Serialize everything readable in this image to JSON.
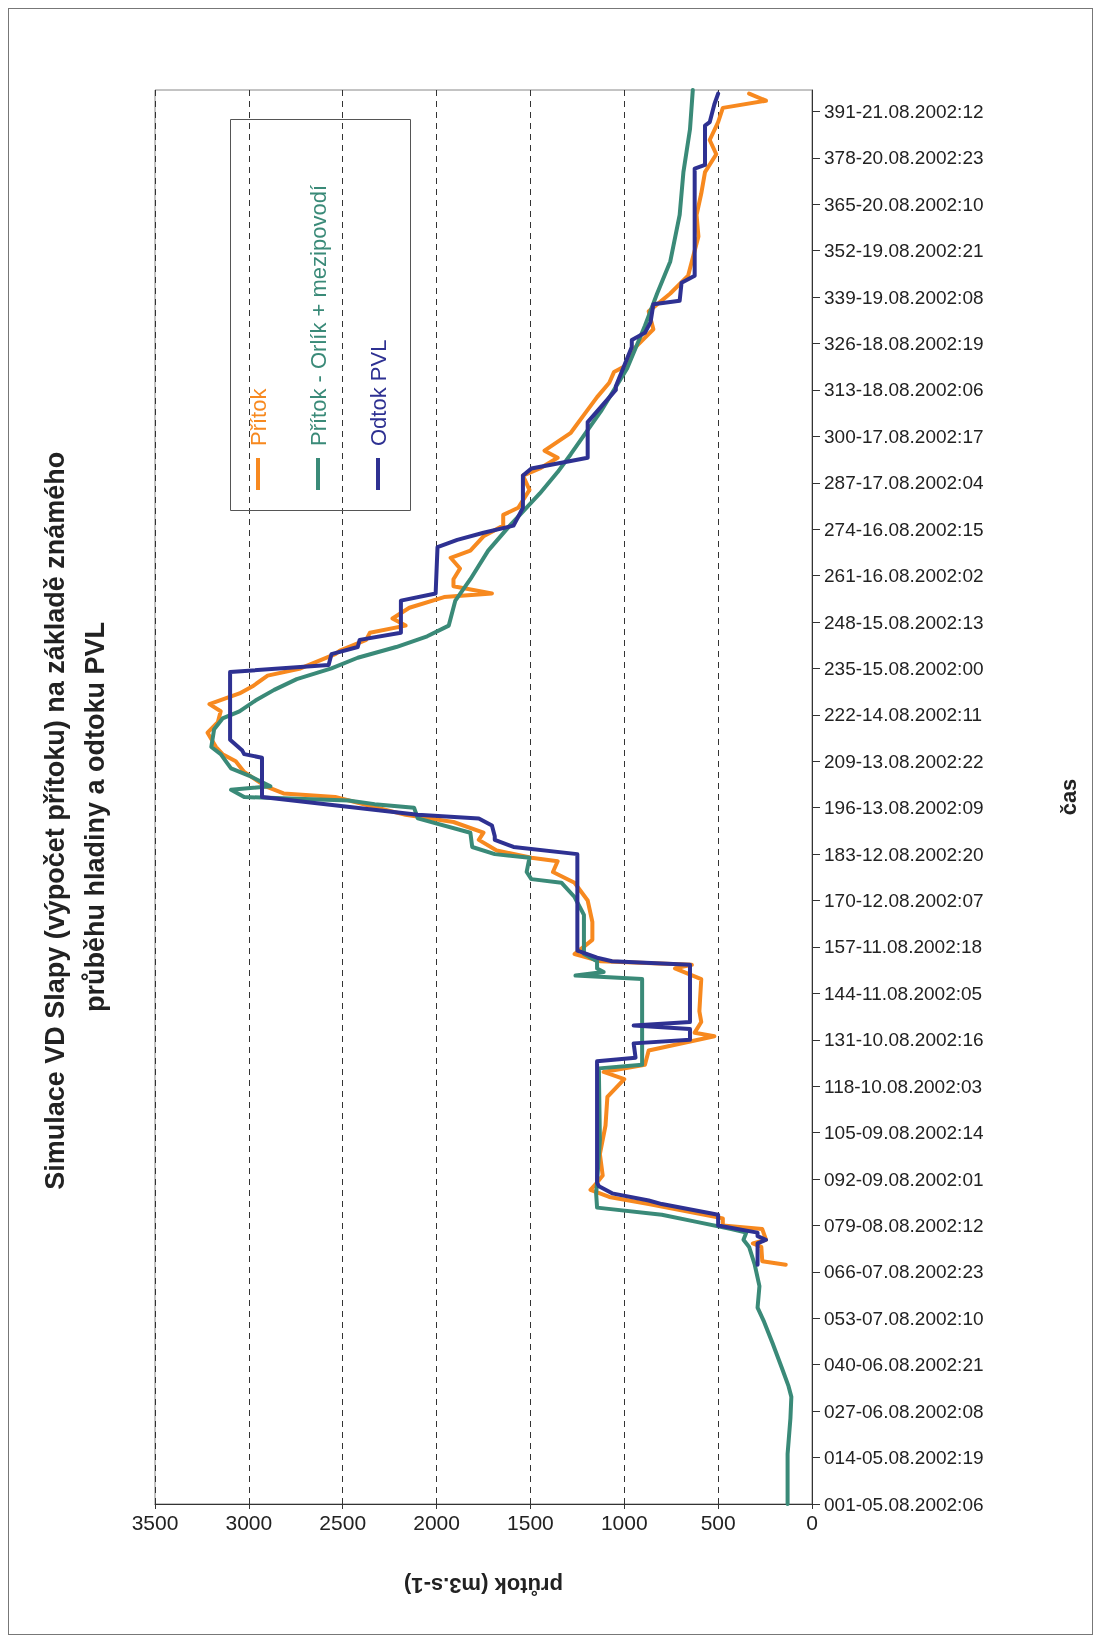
{
  "chart_data": {
    "type": "line",
    "title": "Simulace VD Slapy (výpočet přítoku) na základě známého průběhu hladiny a odtoku PVL",
    "xlabel": "průtok (m3.s-1)",
    "ylabel": "čas",
    "orientation": "horizontal",
    "ylim": [
      "2002-08-05T06:00",
      "2002-08-21T18:00"
    ],
    "yticks": [
      {
        "value": "2002-08-05T06:00",
        "label": "001-05.08.2002:06"
      },
      {
        "value": "2002-08-05T19:00",
        "label": "014-05.08.2002:19"
      },
      {
        "value": "2002-08-06T08:00",
        "label": "027-06.08.2002:08"
      },
      {
        "value": "2002-08-06T21:00",
        "label": "040-06.08.2002:21"
      },
      {
        "value": "2002-08-07T10:00",
        "label": "053-07.08.2002:10"
      },
      {
        "value": "2002-08-07T23:00",
        "label": "066-07.08.2002:23"
      },
      {
        "value": "2002-08-08T12:00",
        "label": "079-08.08.2002:12"
      },
      {
        "value": "2002-08-09T01:00",
        "label": "092-09.08.2002:01"
      },
      {
        "value": "2002-08-09T14:00",
        "label": "105-09.08.2002:14"
      },
      {
        "value": "2002-08-10T03:00",
        "label": "118-10.08.2002:03"
      },
      {
        "value": "2002-08-10T16:00",
        "label": "131-10.08.2002:16"
      },
      {
        "value": "2002-08-11T05:00",
        "label": "144-11.08.2002:05"
      },
      {
        "value": "2002-08-11T18:00",
        "label": "157-11.08.2002:18"
      },
      {
        "value": "2002-08-12T07:00",
        "label": "170-12.08.2002:07"
      },
      {
        "value": "2002-08-12T20:00",
        "label": "183-12.08.2002:20"
      },
      {
        "value": "2002-08-13T09:00",
        "label": "196-13.08.2002:09"
      },
      {
        "value": "2002-08-13T22:00",
        "label": "209-13.08.2002:22"
      },
      {
        "value": "2002-08-14T11:00",
        "label": "222-14.08.2002:11"
      },
      {
        "value": "2002-08-15T00:00",
        "label": "235-15.08.2002:00"
      },
      {
        "value": "2002-08-15T13:00",
        "label": "248-15.08.2002:13"
      },
      {
        "value": "2002-08-16T02:00",
        "label": "261-16.08.2002:02"
      },
      {
        "value": "2002-08-16T15:00",
        "label": "274-16.08.2002:15"
      },
      {
        "value": "2002-08-17T04:00",
        "label": "287-17.08.2002:04"
      },
      {
        "value": "2002-08-17T17:00",
        "label": "300-17.08.2002:17"
      },
      {
        "value": "2002-08-18T06:00",
        "label": "313-18.08.2002:06"
      },
      {
        "value": "2002-08-18T19:00",
        "label": "326-18.08.2002:19"
      },
      {
        "value": "2002-08-19T08:00",
        "label": "339-19.08.2002:08"
      },
      {
        "value": "2002-08-19T21:00",
        "label": "352-19.08.2002:21"
      },
      {
        "value": "2002-08-20T10:00",
        "label": "365-20.08.2002:10"
      },
      {
        "value": "2002-08-20T23:00",
        "label": "378-20.08.2002:23"
      },
      {
        "value": "2002-08-21T12:00",
        "label": "391-21.08.2002:12"
      }
    ],
    "xlim": [
      3500,
      0
    ],
    "xticks": [
      0,
      500,
      1000,
      1500,
      2000,
      2500,
      3000,
      3500
    ],
    "grid": "x",
    "legend": "top left",
    "marker": "none",
    "line_style": "solid",
    "series": [
      {
        "name": "Přítok",
        "color": "#f7891f",
        "x": [
          "2002-08-08T01:00",
          "2002-08-08T02:00",
          "2002-08-08T06:00",
          "2002-08-08T07:00",
          "2002-08-08T08:00",
          "2002-08-08T11:00",
          "2002-08-08T12:00",
          "2002-08-08T14:00",
          "2002-08-08T18:00",
          "2002-08-08T20:00",
          "2002-08-08T22:00",
          "2002-08-09T00:00",
          "2002-08-09T02:00",
          "2002-08-09T08:00",
          "2002-08-09T16:00",
          "2002-08-10T00:00",
          "2002-08-10T05:00",
          "2002-08-10T07:00",
          "2002-08-10T09:00",
          "2002-08-10T13:00",
          "2002-08-10T17:00",
          "2002-08-10T18:00",
          "2002-08-10T21:00",
          "2002-08-11T00:00",
          "2002-08-11T09:00",
          "2002-08-11T12:00",
          "2002-08-11T13:00",
          "2002-08-11T14:00",
          "2002-08-11T16:00",
          "2002-08-11T20:00",
          "2002-08-12T01:00",
          "2002-08-12T07:00",
          "2002-08-12T12:00",
          "2002-08-12T15:00",
          "2002-08-12T18:00",
          "2002-08-12T19:00",
          "2002-08-12T21:00",
          "2002-08-13T00:00",
          "2002-08-13T02:00",
          "2002-08-13T05:00",
          "2002-08-13T07:00",
          "2002-08-13T12:00",
          "2002-08-13T13:00",
          "2002-08-13T15:00",
          "2002-08-13T19:00",
          "2002-08-13T22:00",
          "2002-08-14T00:00",
          "2002-08-14T02:00",
          "2002-08-14T06:00",
          "2002-08-14T09:00",
          "2002-08-14T12:00",
          "2002-08-14T14:00",
          "2002-08-14T17:00",
          "2002-08-14T19:00",
          "2002-08-14T22:00",
          "2002-08-15T00:00",
          "2002-08-15T04:00",
          "2002-08-15T05:00",
          "2002-08-15T08:00",
          "2002-08-15T10:00",
          "2002-08-15T12:00",
          "2002-08-15T14:00",
          "2002-08-15T17:00",
          "2002-08-15T20:00",
          "2002-08-15T21:00",
          "2002-08-15T23:00",
          "2002-08-16T01:00",
          "2002-08-16T04:00",
          "2002-08-16T07:00",
          "2002-08-16T09:00",
          "2002-08-16T13:00",
          "2002-08-16T16:00",
          "2002-08-16T19:00",
          "2002-08-16T21:00",
          "2002-08-17T02:00",
          "2002-08-17T06:00",
          "2002-08-17T08:00",
          "2002-08-17T11:00",
          "2002-08-17T13:00",
          "2002-08-17T18:00",
          "2002-08-17T23:00",
          "2002-08-18T04:00",
          "2002-08-18T08:00",
          "2002-08-18T11:00",
          "2002-08-18T13:00",
          "2002-08-18T18:00",
          "2002-08-18T23:00",
          "2002-08-19T04:00",
          "2002-08-19T09:00",
          "2002-08-19T14:00",
          "2002-08-19T16:00",
          "2002-08-20T01:00",
          "2002-08-20T07:00",
          "2002-08-20T13:00",
          "2002-08-20T19:00",
          "2002-08-21T00:00",
          "2002-08-21T04:00",
          "2002-08-21T09:00",
          "2002-08-21T13:00",
          "2002-08-21T15:00",
          "2002-08-21T17:00"
        ],
        "values": [
          140,
          265,
          270,
          315,
          245,
          265,
          475,
          475,
          870,
          1080,
          1180,
          1145,
          1115,
          1130,
          1100,
          1090,
          1000,
          1110,
          890,
          870,
          520,
          625,
          590,
          600,
          590,
          730,
          640,
          1125,
          1265,
          1170,
          1170,
          1195,
          1265,
          1380,
          1355,
          1495,
          1680,
          1775,
          1750,
          1910,
          2165,
          2540,
          2815,
          2910,
          3025,
          3070,
          3140,
          3175,
          3220,
          3165,
          3150,
          3210,
          3050,
          2980,
          2900,
          2725,
          2540,
          2515,
          2375,
          2355,
          2165,
          2235,
          2145,
          1960,
          1705,
          1910,
          1910,
          1875,
          1925,
          1820,
          1750,
          1645,
          1645,
          1565,
          1505,
          1540,
          1450,
          1355,
          1425,
          1285,
          1215,
          1145,
          1080,
          1055,
          985,
          940,
          845,
          870,
          755,
          660,
          650,
          605,
          615,
          590,
          570,
          510,
          545,
          500,
          475,
          245,
          335
        ]
      },
      {
        "name": "Přítok - Orlík + mezipovodí",
        "color": "#3a8a78",
        "x": [
          "2002-08-05T06:00",
          "2002-08-05T20:00",
          "2002-08-06T06:00",
          "2002-08-06T12:00",
          "2002-08-06T15:00",
          "2002-08-06T20:00",
          "2002-08-07T03:00",
          "2002-08-07T09:00",
          "2002-08-07T13:00",
          "2002-08-07T19:00",
          "2002-08-08T01:00",
          "2002-08-08T06:00",
          "2002-08-08T08:00",
          "2002-08-08T10:00",
          "2002-08-08T11:00",
          "2002-08-08T13:00",
          "2002-08-08T15:00",
          "2002-08-08T17:00",
          "2002-08-08T21:00",
          "2002-08-09T00:00",
          "2002-08-09T12:00",
          "2002-08-10T06:00",
          "2002-08-10T08:00",
          "2002-08-10T09:00",
          "2002-08-11T09:00",
          "2002-08-11T10:00",
          "2002-08-11T11:00",
          "2002-08-11T12:00",
          "2002-08-11T14:00",
          "2002-08-11T16:00",
          "2002-08-12T03:00",
          "2002-08-12T08:00",
          "2002-08-12T12:00",
          "2002-08-12T13:00",
          "2002-08-12T15:00",
          "2002-08-12T19:00",
          "2002-08-12T20:00",
          "2002-08-12T22:00",
          "2002-08-13T02:00",
          "2002-08-13T06:00",
          "2002-08-13T09:00",
          "2002-08-13T10:00",
          "2002-08-13T11:00",
          "2002-08-13T12:00",
          "2002-08-13T14:00",
          "2002-08-13T15:00",
          "2002-08-13T18:00",
          "2002-08-13T20:00",
          "2002-08-14T00:00",
          "2002-08-14T02:00",
          "2002-08-14T07:00",
          "2002-08-14T10:00",
          "2002-08-14T12:00",
          "2002-08-14T15:00",
          "2002-08-14T18:00",
          "2002-08-14T21:00",
          "2002-08-15T00:00",
          "2002-08-15T03:00",
          "2002-08-15T06:00",
          "2002-08-15T09:00",
          "2002-08-15T12:00",
          "2002-08-15T19:00",
          "2002-08-16T01:00",
          "2002-08-16T09:00",
          "2002-08-16T16:00",
          "2002-08-17T01:00",
          "2002-08-17T07:00",
          "2002-08-17T12:00",
          "2002-08-18T00:00",
          "2002-08-18T12:00",
          "2002-08-19T00:00",
          "2002-08-19T09:00",
          "2002-08-19T18:00",
          "2002-08-20T07:00",
          "2002-08-20T19:00",
          "2002-08-21T07:00",
          "2002-08-21T18:00"
        ],
        "values": [
          130,
          130,
          115,
          110,
          125,
          160,
          210,
          255,
          290,
          280,
          305,
          335,
          365,
          350,
          430,
          615,
          800,
          1145,
          1150,
          1145,
          1130,
          1135,
          1135,
          905,
          905,
          1260,
          1110,
          1145,
          1145,
          1215,
          1215,
          1265,
          1335,
          1495,
          1520,
          1505,
          1690,
          1810,
          1820,
          2100,
          2120,
          2330,
          2470,
          3025,
          3095,
          2885,
          3000,
          3095,
          3150,
          3200,
          3185,
          3140,
          3050,
          2965,
          2865,
          2745,
          2560,
          2420,
          2215,
          2050,
          1935,
          1900,
          1820,
          1725,
          1610,
          1450,
          1355,
          1285,
          1125,
          985,
          890,
          825,
          755,
          705,
          685,
          650,
          635
        ]
      },
      {
        "name": "Odtok PVL",
        "color": "#2e3192",
        "x": [
          "2002-08-08T01:00",
          "2002-08-08T07:00",
          "2002-08-08T08:00",
          "2002-08-08T09:00",
          "2002-08-08T10:00",
          "2002-08-08T12:00",
          "2002-08-08T15:00",
          "2002-08-08T18:00",
          "2002-08-08T19:00",
          "2002-08-08T21:00",
          "2002-08-08T23:00",
          "2002-08-09T00:00",
          "2002-08-10T10:00",
          "2002-08-10T11:00",
          "2002-08-10T15:00",
          "2002-08-10T16:00",
          "2002-08-10T19:00",
          "2002-08-10T20:00",
          "2002-08-10T21:00",
          "2002-08-11T13:00",
          "2002-08-11T14:00",
          "2002-08-11T15:00",
          "2002-08-11T17:00",
          "2002-08-12T20:00",
          "2002-08-12T22:00",
          "2002-08-13T00:00",
          "2002-08-13T01:00",
          "2002-08-13T04:00",
          "2002-08-13T06:00",
          "2002-08-13T07:00",
          "2002-08-13T12:00",
          "2002-08-13T23:00",
          "2002-08-14T00:00",
          "2002-08-14T01:00",
          "2002-08-14T04:00",
          "2002-08-14T23:00",
          "2002-08-15T01:00",
          "2002-08-15T04:00",
          "2002-08-15T06:00",
          "2002-08-15T08:00",
          "2002-08-15T10:00",
          "2002-08-15T19:00",
          "2002-08-15T21:00",
          "2002-08-16T10:00",
          "2002-08-16T12:00",
          "2002-08-16T14:00",
          "2002-08-16T16:00",
          "2002-08-16T21:00",
          "2002-08-17T06:00",
          "2002-08-17T08:00",
          "2002-08-17T11:00",
          "2002-08-17T21:00",
          "2002-08-18T06:00",
          "2002-08-18T07:00",
          "2002-08-18T18:00",
          "2002-08-18T20:00",
          "2002-08-18T22:00",
          "2002-08-19T01:00",
          "2002-08-19T06:00",
          "2002-08-19T07:00",
          "2002-08-19T12:00",
          "2002-08-19T14:00",
          "2002-08-20T20:00",
          "2002-08-20T21:00",
          "2002-08-21T08:00",
          "2002-08-21T09:00",
          "2002-08-21T14:00",
          "2002-08-21T17:00"
        ],
        "values": [
          290,
          290,
          245,
          290,
          290,
          500,
          500,
          800,
          870,
          1065,
          1135,
          1145,
          1145,
          940,
          950,
          650,
          650,
          950,
          650,
          650,
          1065,
          1145,
          1250,
          1250,
          1590,
          1690,
          1690,
          1705,
          1775,
          2100,
          2930,
          2930,
          3025,
          3035,
          3100,
          3100,
          2575,
          2560,
          2420,
          2410,
          2190,
          2190,
          2005,
          1995,
          1890,
          1750,
          1590,
          1540,
          1540,
          1495,
          1195,
          1195,
          1045,
          1045,
          960,
          960,
          890,
          860,
          845,
          705,
          695,
          625,
          625,
          570,
          570,
          545,
          520,
          500
        ]
      }
    ]
  }
}
